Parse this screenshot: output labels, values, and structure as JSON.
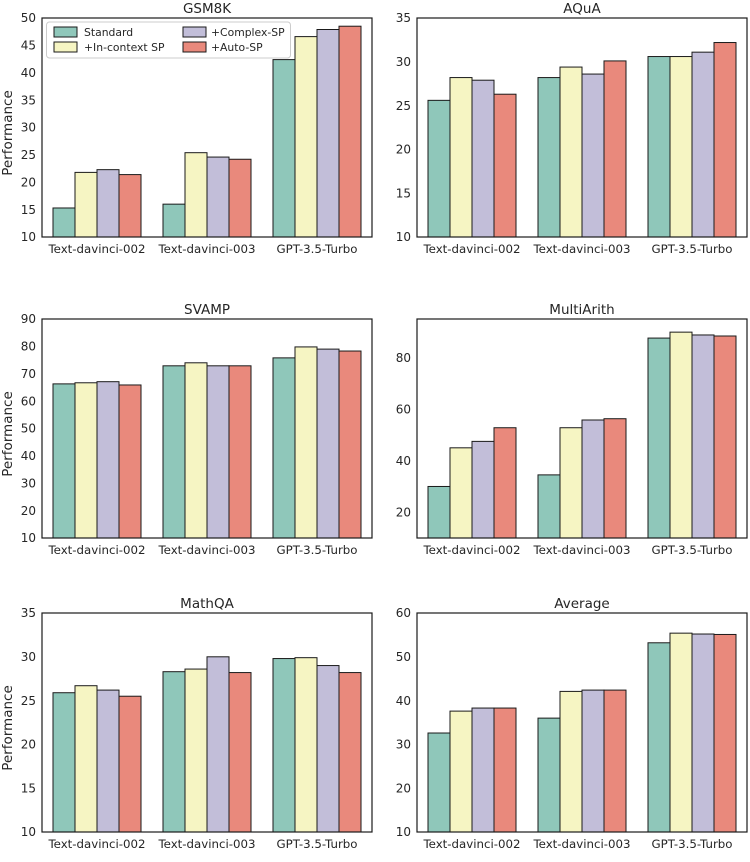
{
  "figure": {
    "text_color": "#262626",
    "spine_color": "#1a1a1a",
    "bar_edge_color": "#1a1a1a",
    "background_color": "#ffffff",
    "legend_border_color": "#cccccc",
    "series_names": [
      "Standard",
      "+In-context SP",
      "+Complex-SP",
      "+Auto-SP"
    ],
    "colors": {
      "Standard": "#8fc7ba",
      "+In-context SP": "#f6f5c3",
      "+Complex-SP": "#c2bed9",
      "+Auto-SP": "#e9897c"
    }
  },
  "chart_data": [
    {
      "type": "bar",
      "title": "GSM8K",
      "ylabel": "Performance",
      "categories": [
        "Text-davinci-002",
        "Text-davinci-003",
        "GPT-3.5-Turbo"
      ],
      "series": [
        {
          "name": "Standard",
          "values": [
            15.3,
            16.0,
            42.4
          ]
        },
        {
          "name": "+In-context SP",
          "values": [
            21.8,
            25.4,
            46.6
          ]
        },
        {
          "name": "+Complex-SP",
          "values": [
            22.3,
            24.6,
            47.9
          ]
        },
        {
          "name": "+Auto-SP",
          "values": [
            21.4,
            24.2,
            48.5
          ]
        }
      ],
      "ylim": [
        10,
        50
      ],
      "yticks": [
        10,
        15,
        20,
        25,
        30,
        35,
        40,
        45,
        50
      ],
      "grid": false,
      "legend": true,
      "legend_position": "upper left"
    },
    {
      "type": "bar",
      "title": "AQuA",
      "ylabel": "",
      "categories": [
        "Text-davinci-002",
        "Text-davinci-003",
        "GPT-3.5-Turbo"
      ],
      "series": [
        {
          "name": "Standard",
          "values": [
            25.6,
            28.2,
            30.6
          ]
        },
        {
          "name": "+In-context SP",
          "values": [
            28.2,
            29.4,
            30.6
          ]
        },
        {
          "name": "+Complex-SP",
          "values": [
            27.9,
            28.6,
            31.1
          ]
        },
        {
          "name": "+Auto-SP",
          "values": [
            26.3,
            30.1,
            32.2
          ]
        }
      ],
      "ylim": [
        10,
        35
      ],
      "yticks": [
        10,
        15,
        20,
        25,
        30,
        35
      ],
      "grid": false,
      "legend": false
    },
    {
      "type": "bar",
      "title": "SVAMP",
      "ylabel": "Performance",
      "categories": [
        "Text-davinci-002",
        "Text-davinci-003",
        "GPT-3.5-Turbo"
      ],
      "series": [
        {
          "name": "Standard",
          "values": [
            66.3,
            72.9,
            75.8
          ]
        },
        {
          "name": "+In-context SP",
          "values": [
            66.7,
            74.0,
            79.8
          ]
        },
        {
          "name": "+Complex-SP",
          "values": [
            67.1,
            72.9,
            79.0
          ]
        },
        {
          "name": "+Auto-SP",
          "values": [
            65.9,
            72.9,
            78.3
          ]
        }
      ],
      "ylim": [
        10,
        90
      ],
      "yticks": [
        10,
        20,
        30,
        40,
        50,
        60,
        70,
        80,
        90
      ],
      "grid": false,
      "legend": false
    },
    {
      "type": "bar",
      "title": "MultiArith",
      "ylabel": "",
      "categories": [
        "Text-davinci-002",
        "Text-davinci-003",
        "GPT-3.5-Turbo"
      ],
      "series": [
        {
          "name": "Standard",
          "values": [
            30.0,
            34.5,
            87.6
          ]
        },
        {
          "name": "+In-context SP",
          "values": [
            45.0,
            52.8,
            89.9
          ]
        },
        {
          "name": "+Complex-SP",
          "values": [
            47.5,
            55.8,
            88.8
          ]
        },
        {
          "name": "+Auto-SP",
          "values": [
            52.8,
            56.3,
            88.4
          ]
        }
      ],
      "ylim": [
        10,
        95
      ],
      "yticks": [
        20,
        40,
        60,
        80
      ],
      "grid": false,
      "legend": false
    },
    {
      "type": "bar",
      "title": "MathQA",
      "ylabel": "Performance",
      "categories": [
        "Text-davinci-002",
        "Text-davinci-003",
        "GPT-3.5-Turbo"
      ],
      "series": [
        {
          "name": "Standard",
          "values": [
            25.9,
            28.3,
            29.8
          ]
        },
        {
          "name": "+In-context SP",
          "values": [
            26.7,
            28.6,
            29.9
          ]
        },
        {
          "name": "+Complex-SP",
          "values": [
            26.2,
            30.0,
            29.0
          ]
        },
        {
          "name": "+Auto-SP",
          "values": [
            25.5,
            28.2,
            28.2
          ]
        }
      ],
      "ylim": [
        10,
        35
      ],
      "yticks": [
        10,
        15,
        20,
        25,
        30,
        35
      ],
      "grid": false,
      "legend": false
    },
    {
      "type": "bar",
      "title": "Average",
      "ylabel": "",
      "categories": [
        "Text-davinci-002",
        "Text-davinci-003",
        "GPT-3.5-Turbo"
      ],
      "series": [
        {
          "name": "Standard",
          "values": [
            32.6,
            36.0,
            53.2
          ]
        },
        {
          "name": "+In-context SP",
          "values": [
            37.6,
            42.1,
            55.4
          ]
        },
        {
          "name": "+Complex-SP",
          "values": [
            38.3,
            42.4,
            55.2
          ]
        },
        {
          "name": "+Auto-SP",
          "values": [
            38.3,
            42.4,
            55.1
          ]
        }
      ],
      "ylim": [
        10,
        60
      ],
      "yticks": [
        10,
        20,
        30,
        40,
        50,
        60
      ],
      "grid": false,
      "legend": false
    }
  ]
}
